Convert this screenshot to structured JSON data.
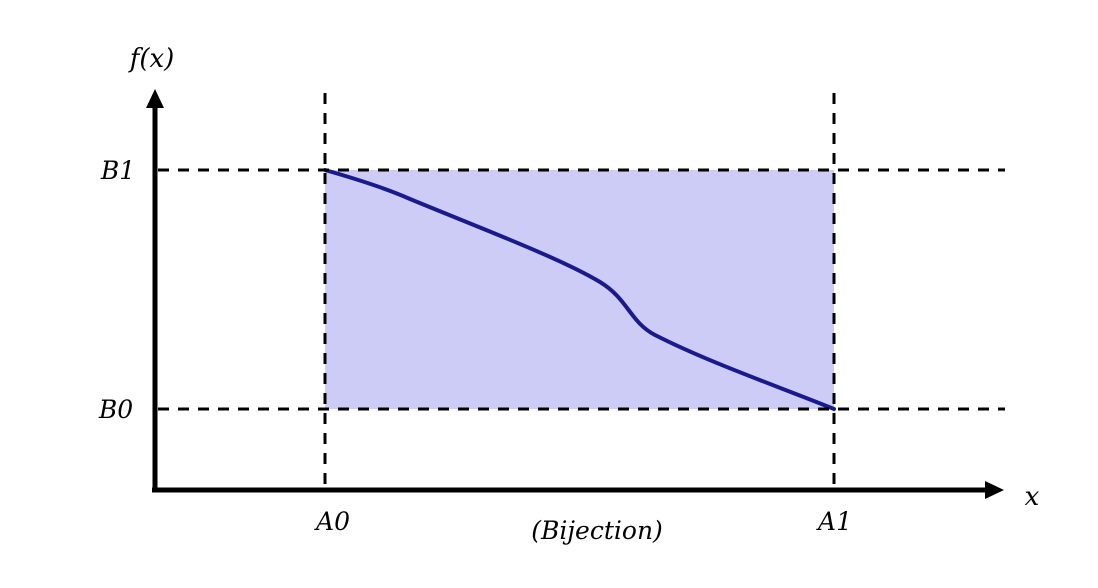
{
  "diagram": {
    "y_axis_label": "f(x)",
    "x_axis_label": "x",
    "x_ticks": {
      "left": "A0",
      "right": "A1"
    },
    "y_ticks": {
      "bottom": "B0",
      "top": "B1"
    },
    "caption": "(Bijection)"
  },
  "colors": {
    "region_fill": "#ccccf7",
    "curve": "#1a1a8c",
    "axes": "#000000",
    "guides": "#000000"
  }
}
